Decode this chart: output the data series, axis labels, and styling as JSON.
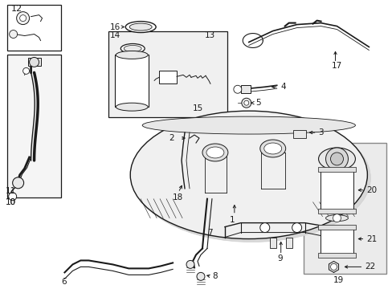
{
  "bg_color": "#ffffff",
  "line_color": "#1a1a1a",
  "fig_width": 4.89,
  "fig_height": 3.6,
  "dpi": 100,
  "font_size": 7.5
}
